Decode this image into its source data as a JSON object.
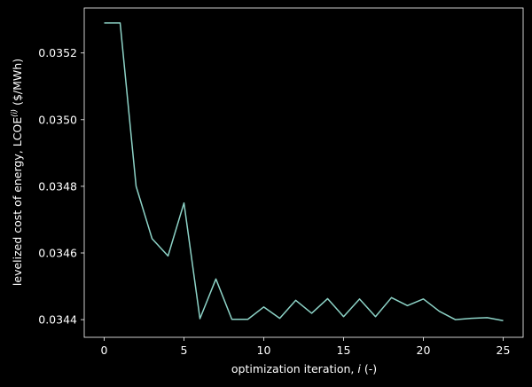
{
  "chart_data": {
    "type": "line",
    "xlabel_main": "optimization iteration, ",
    "xlabel_var": "i",
    "xlabel_unit": " (-)",
    "ylabel_main": "levelized cost of energy, LCOE",
    "ylabel_sup": "(i)",
    "ylabel_unit": " ($/MWh)",
    "xlim": [
      -1.25,
      26.25
    ],
    "ylim": [
      0.034347,
      0.035335
    ],
    "xticks": [
      0,
      5,
      10,
      15,
      20,
      25
    ],
    "yticks": [
      0.0344,
      0.0346,
      0.0348,
      0.035,
      0.0352
    ],
    "ytick_labels": [
      "0.0344",
      "0.0346",
      "0.0348",
      "0.0350",
      "0.0352"
    ],
    "grid": false,
    "colors": {
      "background": "#000000",
      "axes": "#ffffff",
      "line": "#8dd3c7"
    },
    "series": [
      {
        "x": [
          0,
          1,
          2,
          3,
          4,
          5,
          6,
          7,
          8,
          9,
          10,
          11,
          12,
          13,
          14,
          15,
          16,
          17,
          18,
          19,
          20,
          21,
          22,
          23,
          24,
          25
        ],
        "y": [
          0.03529,
          0.03529,
          0.0348,
          0.034643,
          0.034591,
          0.03475,
          0.034403,
          0.034522,
          0.034401,
          0.034401,
          0.034438,
          0.034404,
          0.034458,
          0.034419,
          0.034463,
          0.034409,
          0.034462,
          0.034409,
          0.034466,
          0.034442,
          0.034462,
          0.034425,
          0.0344,
          0.034404,
          0.034406,
          0.034397
        ]
      }
    ]
  }
}
